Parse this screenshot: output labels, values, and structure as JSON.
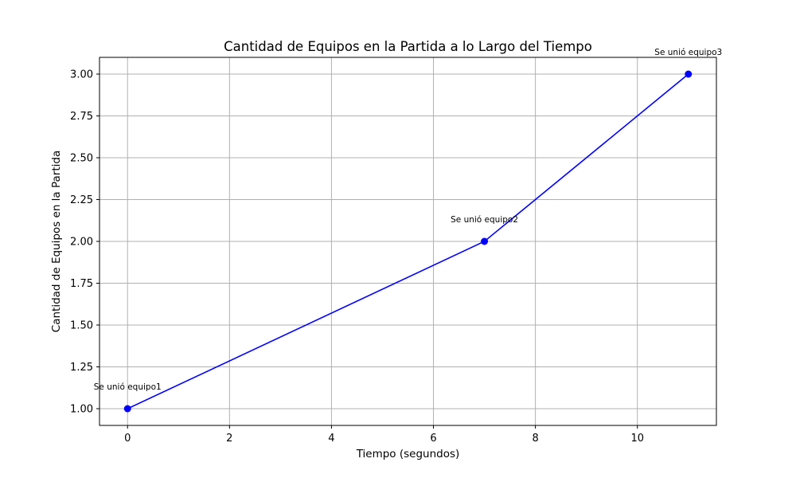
{
  "chart_data": {
    "type": "line",
    "title": "Cantidad de Equipos en la Partida a lo Largo del Tiempo",
    "xlabel": "Tiempo (segundos)",
    "ylabel": "Cantidad de Equipos en la Partida",
    "xlim": [
      -0.55,
      11.55
    ],
    "ylim": [
      0.9,
      3.1
    ],
    "xticks": [
      0,
      2,
      4,
      6,
      8,
      10
    ],
    "xtick_labels": [
      "0",
      "2",
      "4",
      "6",
      "8",
      "10"
    ],
    "yticks": [
      1.0,
      1.25,
      1.5,
      1.75,
      2.0,
      2.25,
      2.5,
      2.75,
      3.0
    ],
    "ytick_labels": [
      "1.00",
      "1.25",
      "1.50",
      "1.75",
      "2.00",
      "2.25",
      "2.50",
      "2.75",
      "3.00"
    ],
    "grid": true,
    "series": [
      {
        "x": [
          0,
          7,
          11
        ],
        "y": [
          1,
          2,
          3
        ],
        "color": "#0000ff",
        "marker": "circle"
      }
    ],
    "annotations": [
      {
        "x": 0,
        "y": 1,
        "text": "Se unió equipo1"
      },
      {
        "x": 7,
        "y": 2,
        "text": "Se unió equipo2"
      },
      {
        "x": 11,
        "y": 3,
        "text": "Se unió equipo3"
      }
    ]
  }
}
